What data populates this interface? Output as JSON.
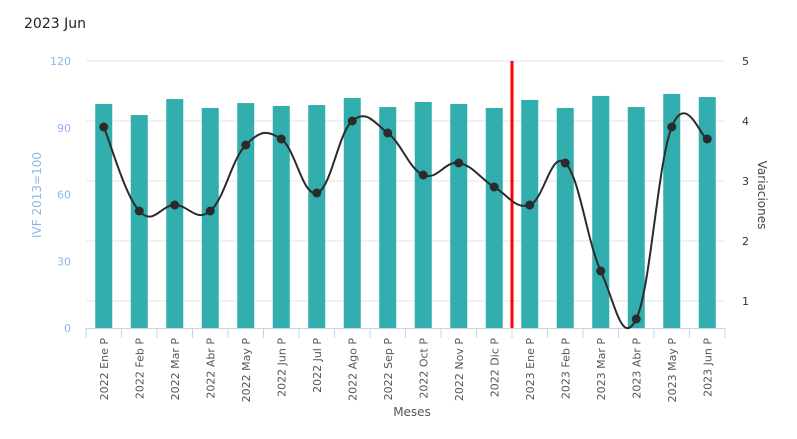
{
  "header": {
    "title": "2023 Jun"
  },
  "chart_data": {
    "type": "bar+line",
    "title": "2023 Jun",
    "xlabel": "Meses",
    "ylabel_left": "IVF 2013=100",
    "ylabel_right": "Variaciones",
    "ylim_left": [
      0,
      120
    ],
    "yticks_left": [
      0,
      30,
      60,
      90,
      120
    ],
    "ylim_right": [
      0.55,
      5
    ],
    "yticks_right": [
      1,
      2,
      3,
      4,
      5
    ],
    "grid": true,
    "categories": [
      "2022 Ene P",
      "2022 Feb P",
      "2022 Mar P",
      "2022 Abr P",
      "2022 May P",
      "2022 Jun P",
      "2022 Jul P",
      "2022 Ago P",
      "2022 Sep P",
      "2022 Oct P",
      "2022 Nov P",
      "2022 Dic P",
      "2023 Ene P",
      "2023 Feb P",
      "2023 Mar P",
      "2023 Abr P",
      "2023 May P",
      "2023 Jun P"
    ],
    "series": [
      {
        "name": "IVF 2013=100",
        "type": "bar",
        "axis": "left",
        "color": "#33AEAE",
        "values": [
          100.7,
          95.7,
          102.9,
          98.9,
          101.1,
          99.8,
          100.2,
          103.4,
          99.3,
          101.6,
          100.7,
          98.9,
          102.5,
          98.9,
          104.3,
          99.3,
          105.2,
          103.8
        ]
      },
      {
        "name": "Variaciones",
        "type": "line",
        "axis": "right",
        "color": "#2B2B2B",
        "values": [
          3.9,
          2.5,
          2.6,
          2.5,
          3.6,
          3.7,
          2.8,
          4.0,
          3.8,
          3.1,
          3.3,
          2.9,
          2.6,
          3.3,
          1.5,
          0.7,
          3.9,
          3.7
        ]
      }
    ],
    "marker_line": {
      "between": [
        "2022 Dic P",
        "2023 Ene P"
      ],
      "color": "#FF0000"
    }
  }
}
